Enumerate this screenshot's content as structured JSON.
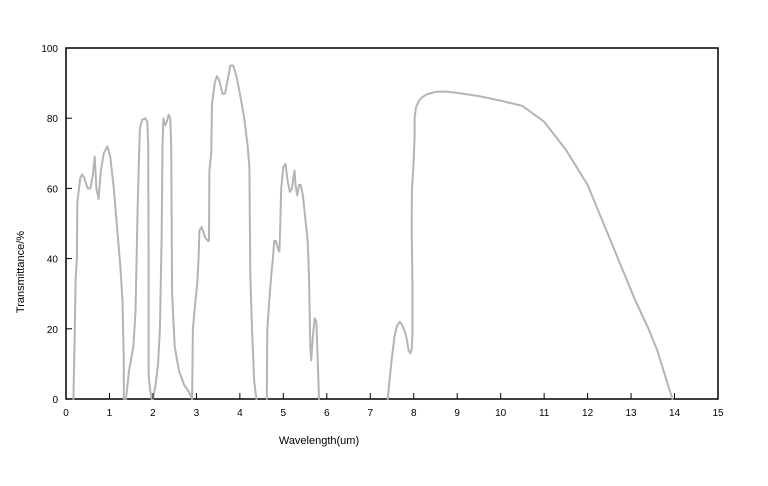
{
  "chart_data": {
    "type": "line",
    "title": "",
    "xlabel": "Wavelength(um)",
    "ylabel": "Transmittance/%",
    "xlim": [
      0,
      15
    ],
    "ylim": [
      0,
      100
    ],
    "xticks": [
      0,
      1,
      2,
      3,
      4,
      5,
      6,
      7,
      8,
      9,
      10,
      11,
      12,
      13,
      14,
      15
    ],
    "yticks": [
      0,
      20,
      40,
      60,
      80,
      100
    ],
    "grid": false,
    "legend": "none",
    "line_color": "#b4b4b4",
    "series": [
      {
        "segments": [
          [
            [
              0.17,
              0
            ],
            [
              0.2,
              18
            ],
            [
              0.22,
              34
            ],
            [
              0.25,
              40
            ],
            [
              0.26,
              56
            ],
            [
              0.3,
              60
            ],
            [
              0.33,
              63
            ],
            [
              0.37,
              64
            ],
            [
              0.42,
              63
            ],
            [
              0.5,
              60
            ],
            [
              0.56,
              60
            ],
            [
              0.62,
              64
            ],
            [
              0.66,
              69
            ],
            [
              0.7,
              60
            ],
            [
              0.75,
              57
            ],
            [
              0.8,
              65
            ],
            [
              0.87,
              70
            ],
            [
              0.95,
              72
            ],
            [
              1.02,
              69
            ],
            [
              1.1,
              60
            ],
            [
              1.18,
              48
            ],
            [
              1.25,
              38
            ],
            [
              1.3,
              28
            ],
            [
              1.33,
              10
            ],
            [
              1.33,
              0
            ]
          ],
          [
            [
              1.38,
              0
            ],
            [
              1.45,
              8
            ],
            [
              1.55,
              15
            ],
            [
              1.6,
              25
            ],
            [
              1.65,
              55
            ],
            [
              1.68,
              69
            ],
            [
              1.7,
              77
            ],
            [
              1.75,
              79.5
            ],
            [
              1.82,
              80
            ],
            [
              1.87,
              79
            ],
            [
              1.89,
              72
            ],
            [
              1.9,
              40
            ],
            [
              1.9,
              7
            ],
            [
              1.93,
              3
            ],
            [
              1.97,
              0
            ]
          ],
          [
            [
              2.0,
              0
            ],
            [
              2.06,
              4
            ],
            [
              2.12,
              10
            ],
            [
              2.16,
              20
            ],
            [
              2.2,
              45
            ],
            [
              2.22,
              72
            ],
            [
              2.24,
              80
            ],
            [
              2.28,
              78
            ],
            [
              2.32,
              79
            ],
            [
              2.36,
              81
            ],
            [
              2.4,
              80
            ],
            [
              2.42,
              72
            ],
            [
              2.44,
              30
            ],
            [
              2.5,
              15
            ],
            [
              2.6,
              8
            ],
            [
              2.72,
              4
            ],
            [
              2.83,
              2
            ],
            [
              2.9,
              0
            ]
          ],
          [
            [
              2.9,
              0
            ],
            [
              2.92,
              20
            ],
            [
              2.97,
              27
            ],
            [
              3.02,
              33
            ],
            [
              3.05,
              40
            ],
            [
              3.07,
              48
            ],
            [
              3.12,
              49
            ],
            [
              3.2,
              46
            ],
            [
              3.27,
              45
            ],
            [
              3.29,
              45
            ],
            [
              3.3,
              65
            ],
            [
              3.34,
              70
            ],
            [
              3.36,
              84
            ],
            [
              3.42,
              90
            ],
            [
              3.47,
              92
            ],
            [
              3.52,
              91
            ],
            [
              3.6,
              87
            ],
            [
              3.66,
              87
            ],
            [
              3.72,
              91
            ],
            [
              3.78,
              95
            ],
            [
              3.85,
              95
            ],
            [
              3.92,
              92
            ],
            [
              4.0,
              87
            ],
            [
              4.1,
              80
            ],
            [
              4.18,
              72
            ],
            [
              4.22,
              66
            ],
            [
              4.24,
              35
            ],
            [
              4.28,
              20
            ],
            [
              4.33,
              5
            ],
            [
              4.38,
              0
            ]
          ],
          [
            [
              4.62,
              0
            ],
            [
              4.63,
              20
            ],
            [
              4.67,
              27
            ],
            [
              4.72,
              35
            ],
            [
              4.76,
              40
            ],
            [
              4.79,
              45
            ],
            [
              4.83,
              45
            ],
            [
              4.87,
              43
            ],
            [
              4.91,
              42
            ],
            [
              4.93,
              50
            ],
            [
              4.95,
              60
            ],
            [
              5.0,
              66
            ],
            [
              5.05,
              67
            ],
            [
              5.1,
              62
            ],
            [
              5.15,
              59
            ],
            [
              5.2,
              60
            ],
            [
              5.24,
              64
            ],
            [
              5.26,
              65
            ],
            [
              5.28,
              61
            ],
            [
              5.32,
              58
            ],
            [
              5.36,
              61
            ],
            [
              5.4,
              61
            ],
            [
              5.45,
              58
            ],
            [
              5.5,
              52
            ],
            [
              5.56,
              45
            ],
            [
              5.59,
              35
            ],
            [
              5.62,
              15
            ],
            [
              5.64,
              11
            ],
            [
              5.68,
              18
            ],
            [
              5.72,
              23
            ],
            [
              5.76,
              22
            ],
            [
              5.78,
              15
            ],
            [
              5.8,
              8
            ],
            [
              5.82,
              0
            ]
          ]
        ]
      },
      {
        "segments": [
          [
            [
              7.4,
              0
            ],
            [
              7.44,
              5
            ],
            [
              7.5,
              12
            ],
            [
              7.56,
              18
            ],
            [
              7.62,
              21
            ],
            [
              7.68,
              22
            ],
            [
              7.74,
              21
            ],
            [
              7.8,
              19
            ],
            [
              7.84,
              17
            ],
            [
              7.88,
              14
            ],
            [
              7.92,
              13
            ],
            [
              7.95,
              14
            ],
            [
              7.97,
              18
            ],
            [
              7.97,
              34
            ],
            [
              7.95,
              50
            ],
            [
              7.96,
              60
            ],
            [
              8.0,
              68
            ],
            [
              8.02,
              75
            ],
            [
              8.02,
              80
            ],
            [
              8.05,
              83
            ],
            [
              8.12,
              85
            ],
            [
              8.2,
              86
            ],
            [
              8.3,
              86.8
            ],
            [
              8.5,
              87.5
            ],
            [
              8.7,
              87.6
            ],
            [
              9.0,
              87.2
            ],
            [
              9.5,
              86.3
            ],
            [
              10.0,
              85.0
            ],
            [
              10.5,
              83.5
            ],
            [
              11.0,
              79
            ],
            [
              11.5,
              71
            ],
            [
              12.0,
              61
            ],
            [
              12.3,
              52
            ],
            [
              12.7,
              40
            ],
            [
              13.1,
              28
            ],
            [
              13.4,
              20
            ],
            [
              13.6,
              14
            ],
            [
              13.8,
              6
            ],
            [
              13.95,
              0
            ]
          ]
        ]
      }
    ]
  }
}
